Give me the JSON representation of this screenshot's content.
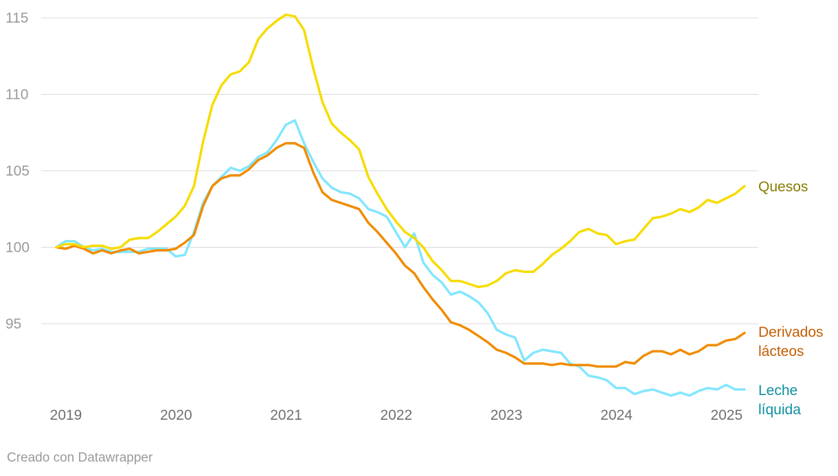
{
  "chart_data": {
    "type": "line",
    "title": "",
    "xlabel": "",
    "ylabel": "",
    "x_start": 2019.0,
    "x_step_months": 1,
    "xlim": [
      2019.0,
      2025.17
    ],
    "ylim": [
      90.5,
      115.3
    ],
    "y_ticks": [
      "95",
      "100",
      "105",
      "110",
      "115"
    ],
    "x_ticks": [
      "2019",
      "2020",
      "2021",
      "2022",
      "2023",
      "2024",
      "2025"
    ],
    "series": [
      {
        "name": "Quesos",
        "label_lines": [
          "Quesos"
        ],
        "color": "#f7dc00",
        "label_color": "#857d00",
        "values": [
          100.0,
          100.2,
          100.2,
          100.0,
          100.1,
          100.1,
          99.9,
          100.0,
          100.5,
          100.6,
          100.6,
          101.0,
          101.5,
          102.0,
          102.7,
          104.0,
          106.9,
          109.3,
          110.6,
          111.3,
          111.5,
          112.1,
          113.6,
          114.3,
          114.8,
          115.2,
          115.1,
          114.2,
          111.7,
          109.5,
          108.1,
          107.5,
          107.0,
          106.4,
          104.6,
          103.5,
          102.5,
          101.7,
          101.0,
          100.6,
          100.0,
          99.1,
          98.5,
          97.8,
          97.8,
          97.6,
          97.4,
          97.5,
          97.8,
          98.3,
          98.5,
          98.4,
          98.4,
          98.9,
          99.5,
          99.9,
          100.4,
          101.0,
          101.2,
          100.9,
          100.8,
          100.2,
          100.4,
          100.5,
          101.2,
          101.9,
          102.0,
          102.2,
          102.5,
          102.3,
          102.6,
          103.1,
          102.9,
          103.2,
          103.5,
          104.0
        ]
      },
      {
        "name": "Derivados lácteos",
        "label_lines": [
          "Derivados",
          "lácteos"
        ],
        "color": "#f08c00",
        "label_color": "#c45e00",
        "values": [
          100.0,
          99.9,
          100.1,
          99.9,
          99.6,
          99.8,
          99.6,
          99.8,
          99.9,
          99.6,
          99.7,
          99.8,
          99.8,
          99.9,
          100.3,
          100.8,
          102.7,
          104.0,
          104.5,
          104.7,
          104.7,
          105.1,
          105.7,
          106.0,
          106.5,
          106.8,
          106.8,
          106.5,
          104.9,
          103.6,
          103.1,
          102.9,
          102.7,
          102.5,
          101.6,
          101.0,
          100.3,
          99.6,
          98.8,
          98.3,
          97.4,
          96.6,
          95.9,
          95.1,
          94.9,
          94.6,
          94.2,
          93.8,
          93.3,
          93.1,
          92.8,
          92.4,
          92.4,
          92.4,
          92.3,
          92.4,
          92.3,
          92.3,
          92.3,
          92.2,
          92.2,
          92.2,
          92.5,
          92.4,
          92.9,
          93.2,
          93.2,
          93.0,
          93.3,
          93.0,
          93.2,
          93.6,
          93.6,
          93.9,
          94.0,
          94.4
        ]
      },
      {
        "name": "Leche líquida",
        "label_lines": [
          "Leche",
          "líquida"
        ],
        "color": "#82e6ff",
        "label_color": "#0e8fa0",
        "values": [
          100.0,
          100.4,
          100.4,
          100.0,
          99.8,
          99.9,
          99.7,
          99.7,
          99.7,
          99.7,
          99.9,
          99.9,
          99.9,
          99.4,
          99.5,
          101.0,
          102.9,
          104.0,
          104.6,
          105.2,
          105.0,
          105.3,
          105.9,
          106.2,
          107.0,
          108.0,
          108.3,
          106.8,
          105.6,
          104.5,
          103.9,
          103.6,
          103.5,
          103.2,
          102.5,
          102.3,
          102.0,
          101.0,
          100.0,
          100.9,
          99.0,
          98.2,
          97.7,
          96.9,
          97.1,
          96.8,
          96.4,
          95.7,
          94.6,
          94.3,
          94.1,
          92.6,
          93.1,
          93.3,
          93.2,
          93.1,
          92.4,
          92.2,
          91.6,
          91.5,
          91.3,
          90.8,
          90.8,
          90.4,
          90.6,
          90.7,
          90.5,
          90.3,
          90.5,
          90.3,
          90.6,
          90.8,
          90.7,
          91.0,
          90.7,
          90.7
        ]
      }
    ],
    "credit": "Creado con Datawrapper"
  }
}
